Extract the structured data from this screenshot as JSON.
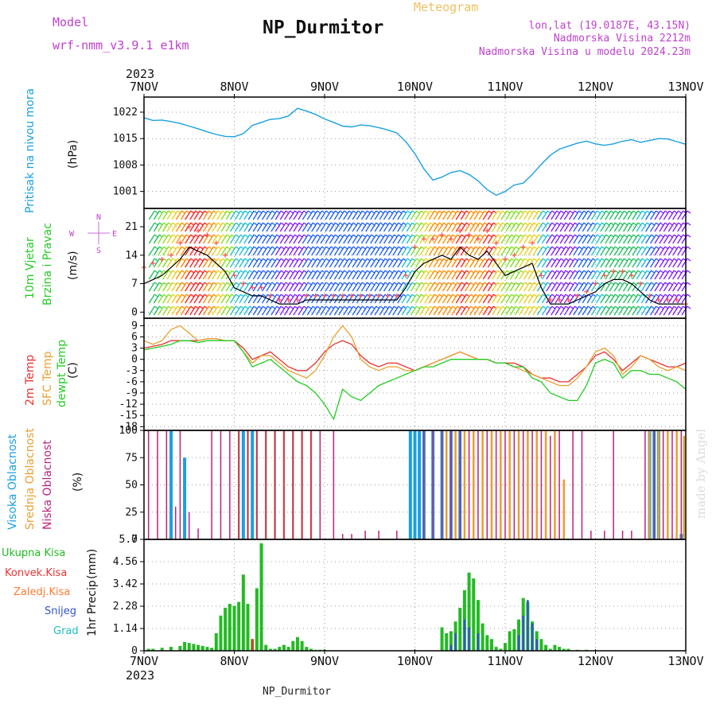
{
  "header": {
    "model_label": "Model",
    "model_name": "wrf-nmm_v3.9.1  e1km",
    "title": "NP_Durmitor",
    "product": "Meteogram",
    "lonlat": "lon,lat (19.0187E, 43.15N)",
    "altitude": "Nadmorska Visina 2212m",
    "model_altitude": "Nadmorska Visina u modelu 2024.23m",
    "footer": "NP_Durmitor",
    "credit": "made by Angel",
    "year": "2023"
  },
  "colors": {
    "pressure": "#1aa0e0",
    "wind_speed": "#000000",
    "gust": "#ff5050",
    "temp2m": "#e83030",
    "sfc": "#e8a030",
    "dewpt": "#22cc22",
    "high_cloud": "#1aa0e0",
    "mid_cloud": "#e8a030",
    "low_cloud": "#c0207c",
    "total_precip": "#22bb22",
    "conv_precip": "#ee3333",
    "frz_precip": "#ff7a30",
    "snow": "#3355cc",
    "hail": "#20c0c0",
    "purple": "#c040d0"
  },
  "chart_data": [
    {
      "type": "line",
      "panel": "pressure",
      "ylabel": "Pritisak na nivou mora",
      "unit": "(hPa)",
      "ylim": [
        996.5,
        1026
      ],
      "yticks": [
        1001,
        1008,
        1015,
        1022
      ],
      "x_days": [
        0,
        0.1,
        0.2,
        0.3,
        0.4,
        0.5,
        0.6,
        0.7,
        0.8,
        0.9,
        1.0,
        1.1,
        1.2,
        1.3,
        1.4,
        1.5,
        1.6,
        1.7,
        1.8,
        1.9,
        2.0,
        2.1,
        2.2,
        2.3,
        2.4,
        2.5,
        2.6,
        2.7,
        2.8,
        2.9,
        3.0,
        3.1,
        3.2,
        3.3,
        3.4,
        3.5,
        3.6,
        3.7,
        3.8,
        3.9,
        4.0,
        4.1,
        4.2,
        4.3,
        4.4,
        4.5,
        4.6,
        4.7,
        4.8,
        4.9,
        5.0,
        5.1,
        5.2,
        5.3,
        5.4,
        5.5,
        5.6,
        5.7,
        5.8,
        5.9,
        6.0
      ],
      "values": [
        1020.5,
        1019.8,
        1019.9,
        1019.5,
        1019.0,
        1018.3,
        1017.6,
        1016.8,
        1016.1,
        1015.6,
        1015.5,
        1016.3,
        1018.5,
        1019.3,
        1020.1,
        1020.3,
        1021.0,
        1023.0,
        1022.3,
        1021.4,
        1020.2,
        1019.3,
        1018.3,
        1018.1,
        1018.6,
        1018.4,
        1017.9,
        1017.3,
        1016.5,
        1014.2,
        1011.0,
        1007.0,
        1004.0,
        1004.8,
        1006.0,
        1006.5,
        1005.5,
        1003.8,
        1001.5,
        1000.0,
        1001.0,
        1002.7,
        1003.2,
        1005.5,
        1008.2,
        1010.6,
        1012.2,
        1013.0,
        1013.8,
        1014.3,
        1013.6,
        1013.2,
        1013.6,
        1014.3,
        1014.7,
        1014.0,
        1014.5,
        1015.0,
        1014.9,
        1014.2,
        1013.5
      ],
      "series": [
        {
          "name": "Pritisak na nivou mora",
          "values": []
        }
      ]
    },
    {
      "type": "line",
      "panel": "wind",
      "ylabel": [
        "10m Vjetar",
        "Brzina i Pravac"
      ],
      "unit": "(m/s)",
      "ylim": [
        -1.5,
        25.5
      ],
      "yticks": [
        0,
        7,
        14,
        21
      ],
      "compass": {
        "n": "N",
        "s": "S",
        "e": "E",
        "w": "W"
      },
      "x_days": [
        0,
        0.1,
        0.2,
        0.3,
        0.4,
        0.5,
        0.6,
        0.7,
        0.8,
        0.9,
        1.0,
        1.1,
        1.2,
        1.3,
        1.4,
        1.5,
        1.6,
        1.7,
        1.8,
        1.9,
        2.0,
        2.1,
        2.2,
        2.3,
        2.4,
        2.5,
        2.6,
        2.7,
        2.8,
        2.9,
        3.0,
        3.1,
        3.2,
        3.3,
        3.4,
        3.5,
        3.6,
        3.7,
        3.8,
        3.9,
        4.0,
        4.1,
        4.2,
        4.3,
        4.4,
        4.5,
        4.6,
        4.7,
        4.8,
        4.9,
        5.0,
        5.1,
        5.2,
        5.3,
        5.4,
        5.5,
        5.6,
        5.7,
        5.8,
        5.9,
        6.0
      ],
      "speed": [
        7,
        8,
        9,
        11,
        13,
        16,
        15,
        14,
        12,
        10,
        6,
        5,
        4,
        4,
        3,
        2,
        2,
        2,
        3,
        3,
        3,
        3,
        3,
        3,
        3,
        3,
        3,
        3,
        3,
        6,
        10,
        12,
        13,
        14,
        13,
        16,
        14,
        13,
        15,
        12,
        9,
        10,
        11,
        12,
        6,
        2,
        2,
        2,
        3,
        4,
        5,
        7,
        8,
        8,
        7,
        5,
        3,
        2,
        2,
        2,
        2
      ],
      "gust": [
        11,
        12,
        13,
        14,
        17,
        21,
        20,
        19,
        17,
        14,
        9,
        7,
        6,
        6,
        4,
        3,
        3,
        3,
        4,
        4,
        4,
        4,
        4,
        4,
        4,
        4,
        4,
        4,
        4,
        9,
        16,
        18,
        18,
        19,
        18,
        20,
        19,
        18,
        20,
        17,
        13,
        14,
        16,
        17,
        9,
        3,
        3,
        3,
        4,
        5,
        7,
        9,
        10,
        10,
        9,
        7,
        4,
        3,
        3,
        3,
        2
      ]
    },
    {
      "type": "line",
      "panel": "temperature",
      "ylabel": [
        "2m Temp",
        "SFC Temp",
        "dewpt Temp"
      ],
      "unit": "(C)",
      "ylim": [
        -19,
        11
      ],
      "yticks": [
        -18,
        -15,
        -12,
        -9,
        -6,
        -3,
        0,
        3,
        6,
        9
      ],
      "x_days": [
        0,
        0.1,
        0.2,
        0.3,
        0.4,
        0.5,
        0.6,
        0.7,
        0.8,
        0.9,
        1.0,
        1.1,
        1.2,
        1.3,
        1.4,
        1.5,
        1.6,
        1.7,
        1.8,
        1.9,
        2.0,
        2.1,
        2.2,
        2.3,
        2.4,
        2.5,
        2.6,
        2.7,
        2.8,
        2.9,
        3.0,
        3.1,
        3.2,
        3.3,
        3.4,
        3.5,
        3.6,
        3.7,
        3.8,
        3.9,
        4.0,
        4.1,
        4.2,
        4.3,
        4.4,
        4.5,
        4.6,
        4.7,
        4.8,
        4.9,
        5.0,
        5.1,
        5.2,
        5.3,
        5.4,
        5.5,
        5.6,
        5.7,
        5.8,
        5.9,
        6.0
      ],
      "series": [
        {
          "name": "2m Temp",
          "values": [
            3,
            3.5,
            4,
            5,
            5,
            5,
            5,
            5.5,
            5.5,
            5,
            5,
            3,
            0,
            1,
            2,
            0,
            -2,
            -3,
            -3,
            -1,
            2,
            4,
            5,
            4,
            1,
            -1,
            -2,
            -1,
            -1,
            -2,
            -3,
            -2,
            -1,
            0,
            1,
            2,
            1,
            0,
            0,
            -1,
            -1,
            -1,
            -2,
            -4,
            -5,
            -5,
            -6,
            -6,
            -4,
            -2,
            1,
            2,
            0,
            -3,
            -1,
            1,
            0,
            -1,
            -2,
            -2,
            -1
          ]
        },
        {
          "name": "SFC Temp",
          "values": [
            5,
            4,
            5,
            8,
            9,
            7,
            5,
            5.5,
            5.5,
            5,
            5,
            2,
            -1,
            1,
            1,
            -1,
            -3,
            -4,
            -5,
            -3,
            1,
            6,
            9,
            6,
            0,
            -2,
            -3,
            -2,
            -2,
            -3,
            -3,
            -2,
            -1,
            0,
            1,
            2,
            1,
            0,
            0,
            -1,
            -1,
            -2,
            -3,
            -4,
            -5,
            -6,
            -7,
            -7,
            -5,
            -2,
            2,
            3,
            1,
            -4,
            -2,
            1,
            0,
            -2,
            -3,
            -2,
            -3
          ]
        },
        {
          "name": "dewpt Temp",
          "values": [
            2.5,
            3,
            3.5,
            4,
            5,
            5,
            4.5,
            5,
            5,
            5,
            5,
            2,
            -2,
            -1,
            0,
            -2,
            -4,
            -6,
            -7,
            -9,
            -12,
            -16,
            -8,
            -10,
            -11,
            -9,
            -7,
            -6,
            -5,
            -4,
            -3,
            -2,
            -2,
            -1,
            0,
            0,
            0,
            0,
            0,
            -1,
            -1,
            -2,
            -2,
            -5,
            -6,
            -9,
            -10,
            -11,
            -11,
            -7,
            -1,
            0,
            -1,
            -5,
            -3,
            -3,
            -4,
            -4,
            -5,
            -6,
            -8
          ]
        }
      ]
    },
    {
      "type": "bar",
      "panel": "clouds",
      "ylabel": [
        "Visoka Oblacnost",
        "Srednja Oblacnost",
        "Niska Oblacnost"
      ],
      "unit": "(%)",
      "ylim": [
        0,
        100
      ],
      "yticks": [
        0,
        25,
        50,
        75,
        100
      ],
      "series": [
        {
          "name": "Visoka Oblacnost",
          "x": [
            0.3,
            0.45,
            1.1,
            1.2,
            2.95,
            3.0,
            3.05,
            3.1,
            3.2,
            3.3,
            3.4,
            3.5,
            5.6,
            5.65,
            5.7,
            5.95
          ],
          "values": [
            100,
            75,
            100,
            100,
            100,
            100,
            100,
            100,
            100,
            100,
            100,
            100,
            100,
            100,
            100,
            5
          ]
        },
        {
          "name": "Srednja Oblacnost",
          "x": [
            1.05,
            1.15,
            1.25,
            1.35,
            1.45,
            1.55,
            1.65,
            1.75,
            1.85,
            3.35,
            3.45,
            3.55,
            3.65,
            3.75,
            3.85,
            3.95,
            4.05,
            4.15,
            4.25,
            4.35,
            4.45,
            4.55,
            4.65,
            5.6,
            5.7,
            5.8,
            5.9,
            5.98
          ],
          "values": [
            100,
            100,
            100,
            100,
            100,
            100,
            100,
            100,
            100,
            100,
            100,
            100,
            100,
            100,
            100,
            100,
            100,
            100,
            100,
            100,
            100,
            100,
            55,
            100,
            100,
            100,
            100,
            95
          ]
        },
        {
          "name": "Niska Oblacnost",
          "x": [
            0.05,
            0.15,
            0.25,
            0.35,
            0.4,
            0.5,
            0.6,
            0.75,
            0.85,
            0.95,
            1.05,
            1.15,
            1.25,
            1.35,
            1.45,
            1.55,
            1.65,
            1.75,
            1.85,
            1.95,
            2.1,
            2.2,
            2.3,
            2.45,
            2.6,
            2.8,
            3.1,
            3.2,
            3.3,
            3.4,
            3.5,
            3.6,
            3.7,
            3.8,
            3.9,
            4.0,
            4.1,
            4.2,
            4.3,
            4.4,
            4.5,
            4.6,
            4.75,
            4.85,
            4.95,
            5.1,
            5.2,
            5.3,
            5.4,
            5.55,
            5.65,
            5.75,
            5.85,
            5.95
          ],
          "values": [
            100,
            100,
            100,
            30,
            100,
            25,
            10,
            100,
            100,
            100,
            100,
            100,
            100,
            100,
            100,
            100,
            100,
            100,
            100,
            100,
            100,
            5,
            5,
            8,
            8,
            8,
            100,
            100,
            100,
            100,
            100,
            100,
            100,
            100,
            100,
            100,
            100,
            100,
            100,
            100,
            95,
            100,
            100,
            100,
            8,
            8,
            100,
            8,
            8,
            100,
            100,
            100,
            100,
            100
          ]
        }
      ]
    },
    {
      "type": "bar",
      "panel": "precipitation",
      "ylabel": "1hr Precip",
      "unit": "(mm)",
      "ylim": [
        0,
        5.7
      ],
      "yticks": [
        0,
        1.14,
        2.28,
        3.42,
        4.56,
        5.7
      ],
      "legend": [
        "Ukupna Kisa",
        "Konvek.Kisa",
        "Zaledj.Kisa",
        "Snijeg",
        "Grad"
      ],
      "series": [
        {
          "name": "Ukupna Kisa",
          "x": [
            0.05,
            0.1,
            0.2,
            0.3,
            0.4,
            0.45,
            0.5,
            0.55,
            0.6,
            0.65,
            0.7,
            0.75,
            0.8,
            0.85,
            0.9,
            0.95,
            1.0,
            1.05,
            1.1,
            1.15,
            1.2,
            1.25,
            1.3,
            1.35,
            1.4,
            1.45,
            1.5,
            1.55,
            1.6,
            1.65,
            1.7,
            1.75,
            1.8,
            1.85,
            1.9,
            1.95,
            2.0,
            3.3,
            3.35,
            3.4,
            3.45,
            3.5,
            3.55,
            3.6,
            3.65,
            3.7,
            3.75,
            3.8,
            3.85,
            3.9,
            3.95,
            4.0,
            4.05,
            4.1,
            4.15,
            4.2,
            4.25,
            4.3,
            4.35,
            4.4,
            4.45,
            4.5,
            4.55,
            4.6,
            4.65,
            4.7,
            4.8,
            4.9
          ],
          "values": [
            0.1,
            0.1,
            0.15,
            0.2,
            0.25,
            0.45,
            0.4,
            0.35,
            0.3,
            0.25,
            0.2,
            0.15,
            0.9,
            1.8,
            2.2,
            2.4,
            2.3,
            2.5,
            3.9,
            2.4,
            0.6,
            3.2,
            5.5,
            0.3,
            0.1,
            0.1,
            0.2,
            0.3,
            0.2,
            0.5,
            0.7,
            0.5,
            0.2,
            0.1,
            0.05,
            0.05,
            0.05,
            1.2,
            0.9,
            1.0,
            1.5,
            2.2,
            3.1,
            4.0,
            3.7,
            2.6,
            1.4,
            0.8,
            0.6,
            0.2,
            0.1,
            0.4,
            1.0,
            1.1,
            1.6,
            2.7,
            2.5,
            1.5,
            1.0,
            0.6,
            0.3,
            0.1,
            0.3,
            0.2,
            0.1,
            0.1,
            0.05,
            0.05
          ]
        },
        {
          "name": "Konvek.Kisa",
          "x": [
            1.2
          ],
          "values": [
            0.6
          ]
        },
        {
          "name": "Snijeg",
          "x": [
            3.4,
            3.45,
            3.55,
            3.6,
            3.7,
            4.15,
            4.2,
            4.25,
            4.3,
            4.35
          ],
          "values": [
            0.3,
            0.9,
            1.6,
            1.2,
            0.9,
            0.8,
            1.8,
            2.6,
            1.4,
            0.6
          ]
        }
      ]
    }
  ],
  "x_axis": {
    "labels": [
      "7NOV",
      "8NOV",
      "9NOV",
      "10NOV",
      "11NOV",
      "12NOV",
      "13NOV"
    ]
  }
}
